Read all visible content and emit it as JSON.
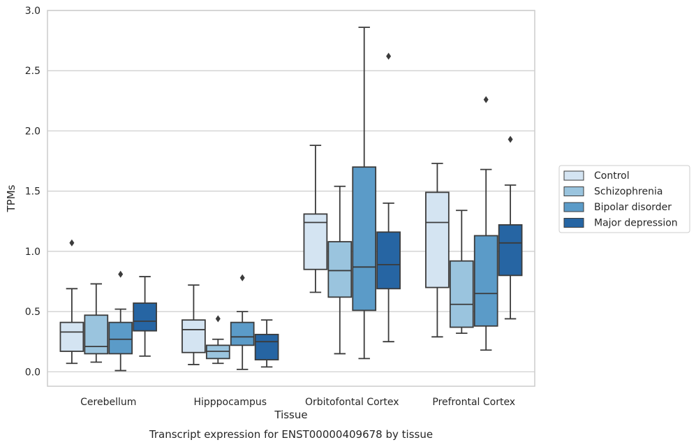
{
  "chart_data": {
    "type": "boxplot",
    "xlabel": "Tissue",
    "ylabel": "TPMs",
    "caption": "Transcript expression for ENST00000409678 by tissue",
    "ylim": [
      -0.12,
      3.0
    ],
    "yticks": [
      0.0,
      0.5,
      1.0,
      1.5,
      2.0,
      2.5,
      3.0
    ],
    "ytick_labels": [
      "0.0",
      "0.5",
      "1.0",
      "1.5",
      "2.0",
      "2.5",
      "3.0"
    ],
    "grid": "horizontal",
    "legend_position": "right",
    "categories": [
      "Cerebellum",
      "Hipppocampus",
      "Orbitofontal Cortex",
      "Prefrontal Cortex"
    ],
    "series": [
      {
        "name": "Control",
        "color": "#d4e4f2",
        "boxes": [
          {
            "whislo": 0.07,
            "q1": 0.17,
            "med": 0.33,
            "q3": 0.41,
            "whishi": 0.69,
            "fliers": [
              1.07
            ]
          },
          {
            "whislo": 0.06,
            "q1": 0.16,
            "med": 0.35,
            "q3": 0.43,
            "whishi": 0.72,
            "fliers": []
          },
          {
            "whislo": 0.66,
            "q1": 0.85,
            "med": 1.24,
            "q3": 1.31,
            "whishi": 1.88,
            "fliers": []
          },
          {
            "whislo": 0.29,
            "q1": 0.7,
            "med": 1.24,
            "q3": 1.49,
            "whishi": 1.73,
            "fliers": []
          }
        ]
      },
      {
        "name": "Schizophrenia",
        "color": "#9ac4de",
        "boxes": [
          {
            "whislo": 0.08,
            "q1": 0.15,
            "med": 0.21,
            "q3": 0.47,
            "whishi": 0.73,
            "fliers": []
          },
          {
            "whislo": 0.07,
            "q1": 0.11,
            "med": 0.17,
            "q3": 0.22,
            "whishi": 0.27,
            "fliers": [
              0.44
            ]
          },
          {
            "whislo": 0.15,
            "q1": 0.62,
            "med": 0.84,
            "q3": 1.08,
            "whishi": 1.54,
            "fliers": []
          },
          {
            "whislo": 0.32,
            "q1": 0.37,
            "med": 0.56,
            "q3": 0.92,
            "whishi": 1.34,
            "fliers": []
          }
        ]
      },
      {
        "name": "Bipolar disorder",
        "color": "#5b9bc8",
        "boxes": [
          {
            "whislo": 0.01,
            "q1": 0.15,
            "med": 0.27,
            "q3": 0.41,
            "whishi": 0.52,
            "fliers": [
              0.81
            ]
          },
          {
            "whislo": 0.02,
            "q1": 0.22,
            "med": 0.29,
            "q3": 0.41,
            "whishi": 0.5,
            "fliers": [
              0.78
            ]
          },
          {
            "whislo": 0.11,
            "q1": 0.51,
            "med": 0.87,
            "q3": 1.7,
            "whishi": 2.86,
            "fliers": []
          },
          {
            "whislo": 0.18,
            "q1": 0.38,
            "med": 0.65,
            "q3": 1.13,
            "whishi": 1.68,
            "fliers": [
              2.26
            ]
          }
        ]
      },
      {
        "name": "Major depression",
        "color": "#2665a3",
        "boxes": [
          {
            "whislo": 0.13,
            "q1": 0.34,
            "med": 0.42,
            "q3": 0.57,
            "whishi": 0.79,
            "fliers": []
          },
          {
            "whislo": 0.04,
            "q1": 0.1,
            "med": 0.25,
            "q3": 0.31,
            "whishi": 0.43,
            "fliers": []
          },
          {
            "whislo": 0.25,
            "q1": 0.69,
            "med": 0.89,
            "q3": 1.16,
            "whishi": 1.4,
            "fliers": [
              2.62
            ]
          },
          {
            "whislo": 0.44,
            "q1": 0.8,
            "med": 1.07,
            "q3": 1.22,
            "whishi": 1.55,
            "fliers": [
              1.93
            ]
          }
        ]
      }
    ]
  }
}
